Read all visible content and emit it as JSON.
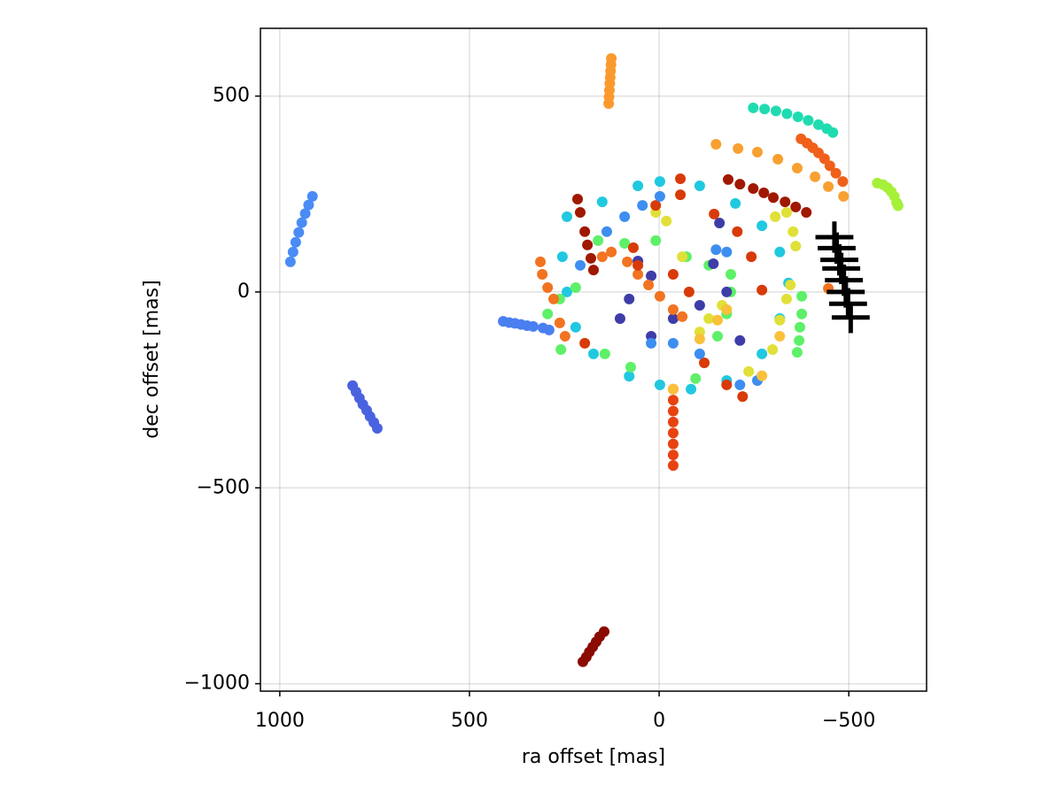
{
  "chart_data": {
    "type": "scatter",
    "xlabel": "ra offset [mas]",
    "ylabel": "dec offset [mas]",
    "xlim": [
      1051,
      -705
    ],
    "ylim": [
      -1019,
      673
    ],
    "grid": true,
    "xticks": [
      1000,
      500,
      0,
      {
        "value": -500,
        "label": "−500"
      }
    ],
    "yticks": [
      {
        "value": -1000,
        "label": "−1000"
      },
      {
        "value": -500,
        "label": "−500"
      },
      0,
      500
    ],
    "series": [
      {
        "color": "#4a8cf5",
        "x": [
          972,
          965,
          958,
          950,
          942,
          933,
          924,
          914
        ],
        "y": [
          77,
          102,
          127,
          152,
          177,
          200,
          222,
          244
        ]
      },
      {
        "color": "#4a62e0",
        "x": [
          808,
          799,
          790,
          781,
          771,
          762,
          752,
          743
        ],
        "y": [
          -239,
          -255,
          -271,
          -287,
          -302,
          -318,
          -333,
          -348
        ]
      },
      {
        "color": "#8b0a02",
        "x": [
          201,
          192,
          184,
          175,
          166,
          157,
          145
        ],
        "y": [
          -944,
          -932,
          -919,
          -906,
          -893,
          -880,
          -867
        ]
      },
      {
        "color": "#fa9a2e",
        "x": [
          126,
          127,
          128,
          129,
          130,
          131,
          132,
          133
        ],
        "y": [
          596,
          580,
          564,
          548,
          532,
          515,
          498,
          481
        ]
      },
      {
        "color": "#1fdcb0",
        "x": [
          -248,
          -278,
          -308,
          -337,
          -366,
          -393,
          -420,
          -442,
          -458
        ],
        "y": [
          470,
          467,
          462,
          455,
          447,
          438,
          427,
          417,
          407
        ]
      },
      {
        "color": "#f8a030",
        "x": [
          -150,
          -208,
          -259,
          -313,
          -364,
          -411,
          -446,
          -486
        ],
        "y": [
          377,
          366,
          357,
          339,
          316,
          294,
          269,
          244
        ]
      },
      {
        "color": "#f0601a",
        "x": [
          -374,
          -390,
          -405,
          -420,
          -436,
          -450,
          -466,
          -484
        ],
        "y": [
          391,
          380,
          368,
          355,
          340,
          322,
          303,
          282
        ]
      },
      {
        "color": "#a6f03a",
        "x": [
          -575,
          -590,
          -602,
          -612,
          -620,
          -626,
          -630
        ],
        "y": [
          278,
          274,
          266,
          256,
          244,
          228,
          220
        ]
      },
      {
        "color": "#e84210",
        "x": [
          -37,
          -37,
          -37,
          -37,
          -37,
          -37,
          -37,
          -37
        ],
        "y": [
          -248,
          -276,
          -304,
          -332,
          -360,
          -388,
          -416,
          -443
        ]
      },
      {
        "color": "#4a7ff0",
        "x": [
          411,
          395,
          380,
          364,
          348,
          332,
          306,
          290
        ],
        "y": [
          -75,
          -78,
          -80,
          -83,
          -86,
          -88,
          -92,
          -97
        ]
      },
      {
        "color": "#20c8e0",
        "x": [
          243,
          150,
          56,
          -2,
          -107,
          -201,
          -271,
          -318,
          -341,
          -318,
          -271,
          -178,
          -84,
          -2,
          79,
          173,
          220,
          243,
          255
        ],
        "y": [
          192,
          230,
          271,
          282,
          271,
          226,
          169,
          102,
          23,
          -68,
          -158,
          -226,
          -248,
          -237,
          -215,
          -158,
          -90,
          0,
          90
        ]
      },
      {
        "color": "#a01800",
        "x": [
          -182,
          -213,
          -248,
          -276,
          -301,
          -332,
          -360,
          -388,
          215,
          208,
          196,
          189,
          180,
          173
        ],
        "y": [
          287,
          275,
          264,
          253,
          241,
          230,
          217,
          203,
          237,
          203,
          154,
          120,
          86,
          56
        ]
      },
      {
        "color": "#5ef068",
        "x": [
          294,
          262,
          220,
          161,
          91,
          9,
          -72,
          -131,
          -189,
          -189,
          -178,
          -154,
          -96,
          75,
          143,
          259,
          -376,
          -376,
          -371,
          -369,
          -364
        ],
        "y": [
          -56,
          -18,
          11,
          131,
          124,
          131,
          90,
          68,
          45,
          0,
          -56,
          -113,
          -221,
          -192,
          -158,
          -147,
          -11,
          -56,
          -90,
          -124,
          -154
        ]
      },
      {
        "color": "#3e3da8",
        "x": [
          56,
          103,
          21,
          -37,
          -143,
          -178,
          -213,
          -107,
          79,
          21,
          -159
        ],
        "y": [
          79,
          -68,
          -113,
          -68,
          72,
          0,
          -124,
          -34,
          -18,
          41,
          176
        ]
      },
      {
        "color": "#e0e038",
        "x": [
          9,
          -19,
          -61,
          -107,
          -131,
          -166,
          -306,
          -336,
          -353,
          -360,
          -346,
          -336,
          -318,
          -299,
          -236
        ],
        "y": [
          203,
          181,
          90,
          -102,
          -68,
          -34,
          192,
          203,
          154,
          117,
          18,
          -18,
          -72,
          -147,
          -203
        ]
      },
      {
        "color": "#f27320",
        "x": [
          84,
          56,
          28,
          -2,
          -37,
          -61,
          126,
          150,
          313,
          308,
          294,
          278,
          262,
          248,
          -446
        ],
        "y": [
          77,
          45,
          18,
          -11,
          -45,
          -63,
          102,
          90,
          77,
          45,
          11,
          -18,
          -79,
          -113,
          9
        ]
      },
      {
        "color": "#d83a08",
        "x": [
          9,
          -56,
          -56,
          -145,
          -206,
          -243,
          -271,
          56,
          68,
          -37,
          -79,
          -119,
          -178,
          -220,
          196
        ],
        "y": [
          221,
          289,
          248,
          199,
          154,
          90,
          5,
          68,
          113,
          45,
          0,
          -181,
          -237,
          -267,
          -131
        ]
      },
      {
        "color": "#3d8ef0",
        "x": [
          -2,
          44,
          91,
          138,
          208,
          -178,
          -150,
          21,
          -37,
          -107,
          -213,
          -259
        ],
        "y": [
          244,
          221,
          192,
          154,
          68,
          102,
          108,
          -131,
          -131,
          -158,
          -237,
          -226
        ]
      },
      {
        "color": "#f9c03a",
        "x": [
          -107,
          -154,
          -178,
          -37,
          -271,
          -318
        ],
        "y": [
          -120,
          -72,
          -45,
          -248,
          -214,
          -113
        ]
      },
      {
        "color": "#000000",
        "x": [
          -462,
          -468,
          -475,
          -480,
          -487,
          -492,
          -498,
          -505
        ],
        "y": [
          140,
          112,
          82,
          60,
          30,
          0,
          -30,
          -65
        ],
        "xerr": [
          50,
          50,
          50,
          50,
          50,
          50,
          50,
          50
        ],
        "yerr": [
          40,
          40,
          40,
          40,
          40,
          40,
          40,
          40
        ]
      }
    ]
  }
}
